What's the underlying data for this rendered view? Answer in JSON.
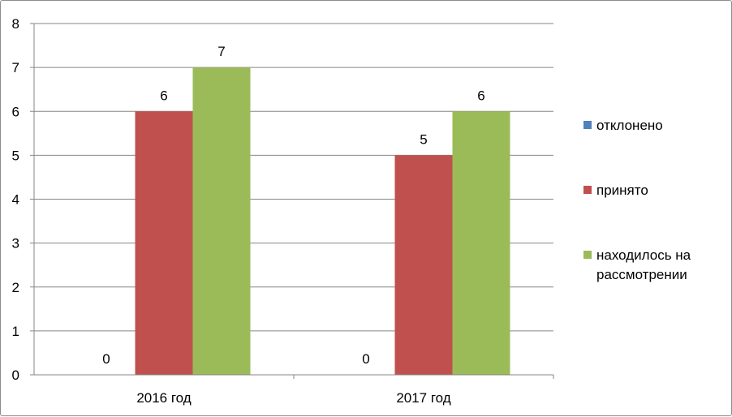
{
  "chart_data": {
    "type": "bar",
    "categories": [
      "2016 год",
      "2017 год"
    ],
    "series": [
      {
        "name": "отклонено",
        "values": [
          0,
          0
        ],
        "color": "#4F81BD"
      },
      {
        "name": "принято",
        "values": [
          6,
          5
        ],
        "color": "#C0504D"
      },
      {
        "name": "находилось на рассмотрении",
        "values": [
          7,
          6
        ],
        "color": "#9BBB59",
        "legend_lines": [
          "находилось на",
          "рассмотрении"
        ]
      }
    ],
    "ylim": [
      0,
      8
    ],
    "yticks": [
      "0",
      "1",
      "2",
      "3",
      "4",
      "5",
      "6",
      "7",
      "8"
    ],
    "grid": true,
    "legend_position": "right",
    "title": "",
    "xlabel": "",
    "ylabel": ""
  }
}
